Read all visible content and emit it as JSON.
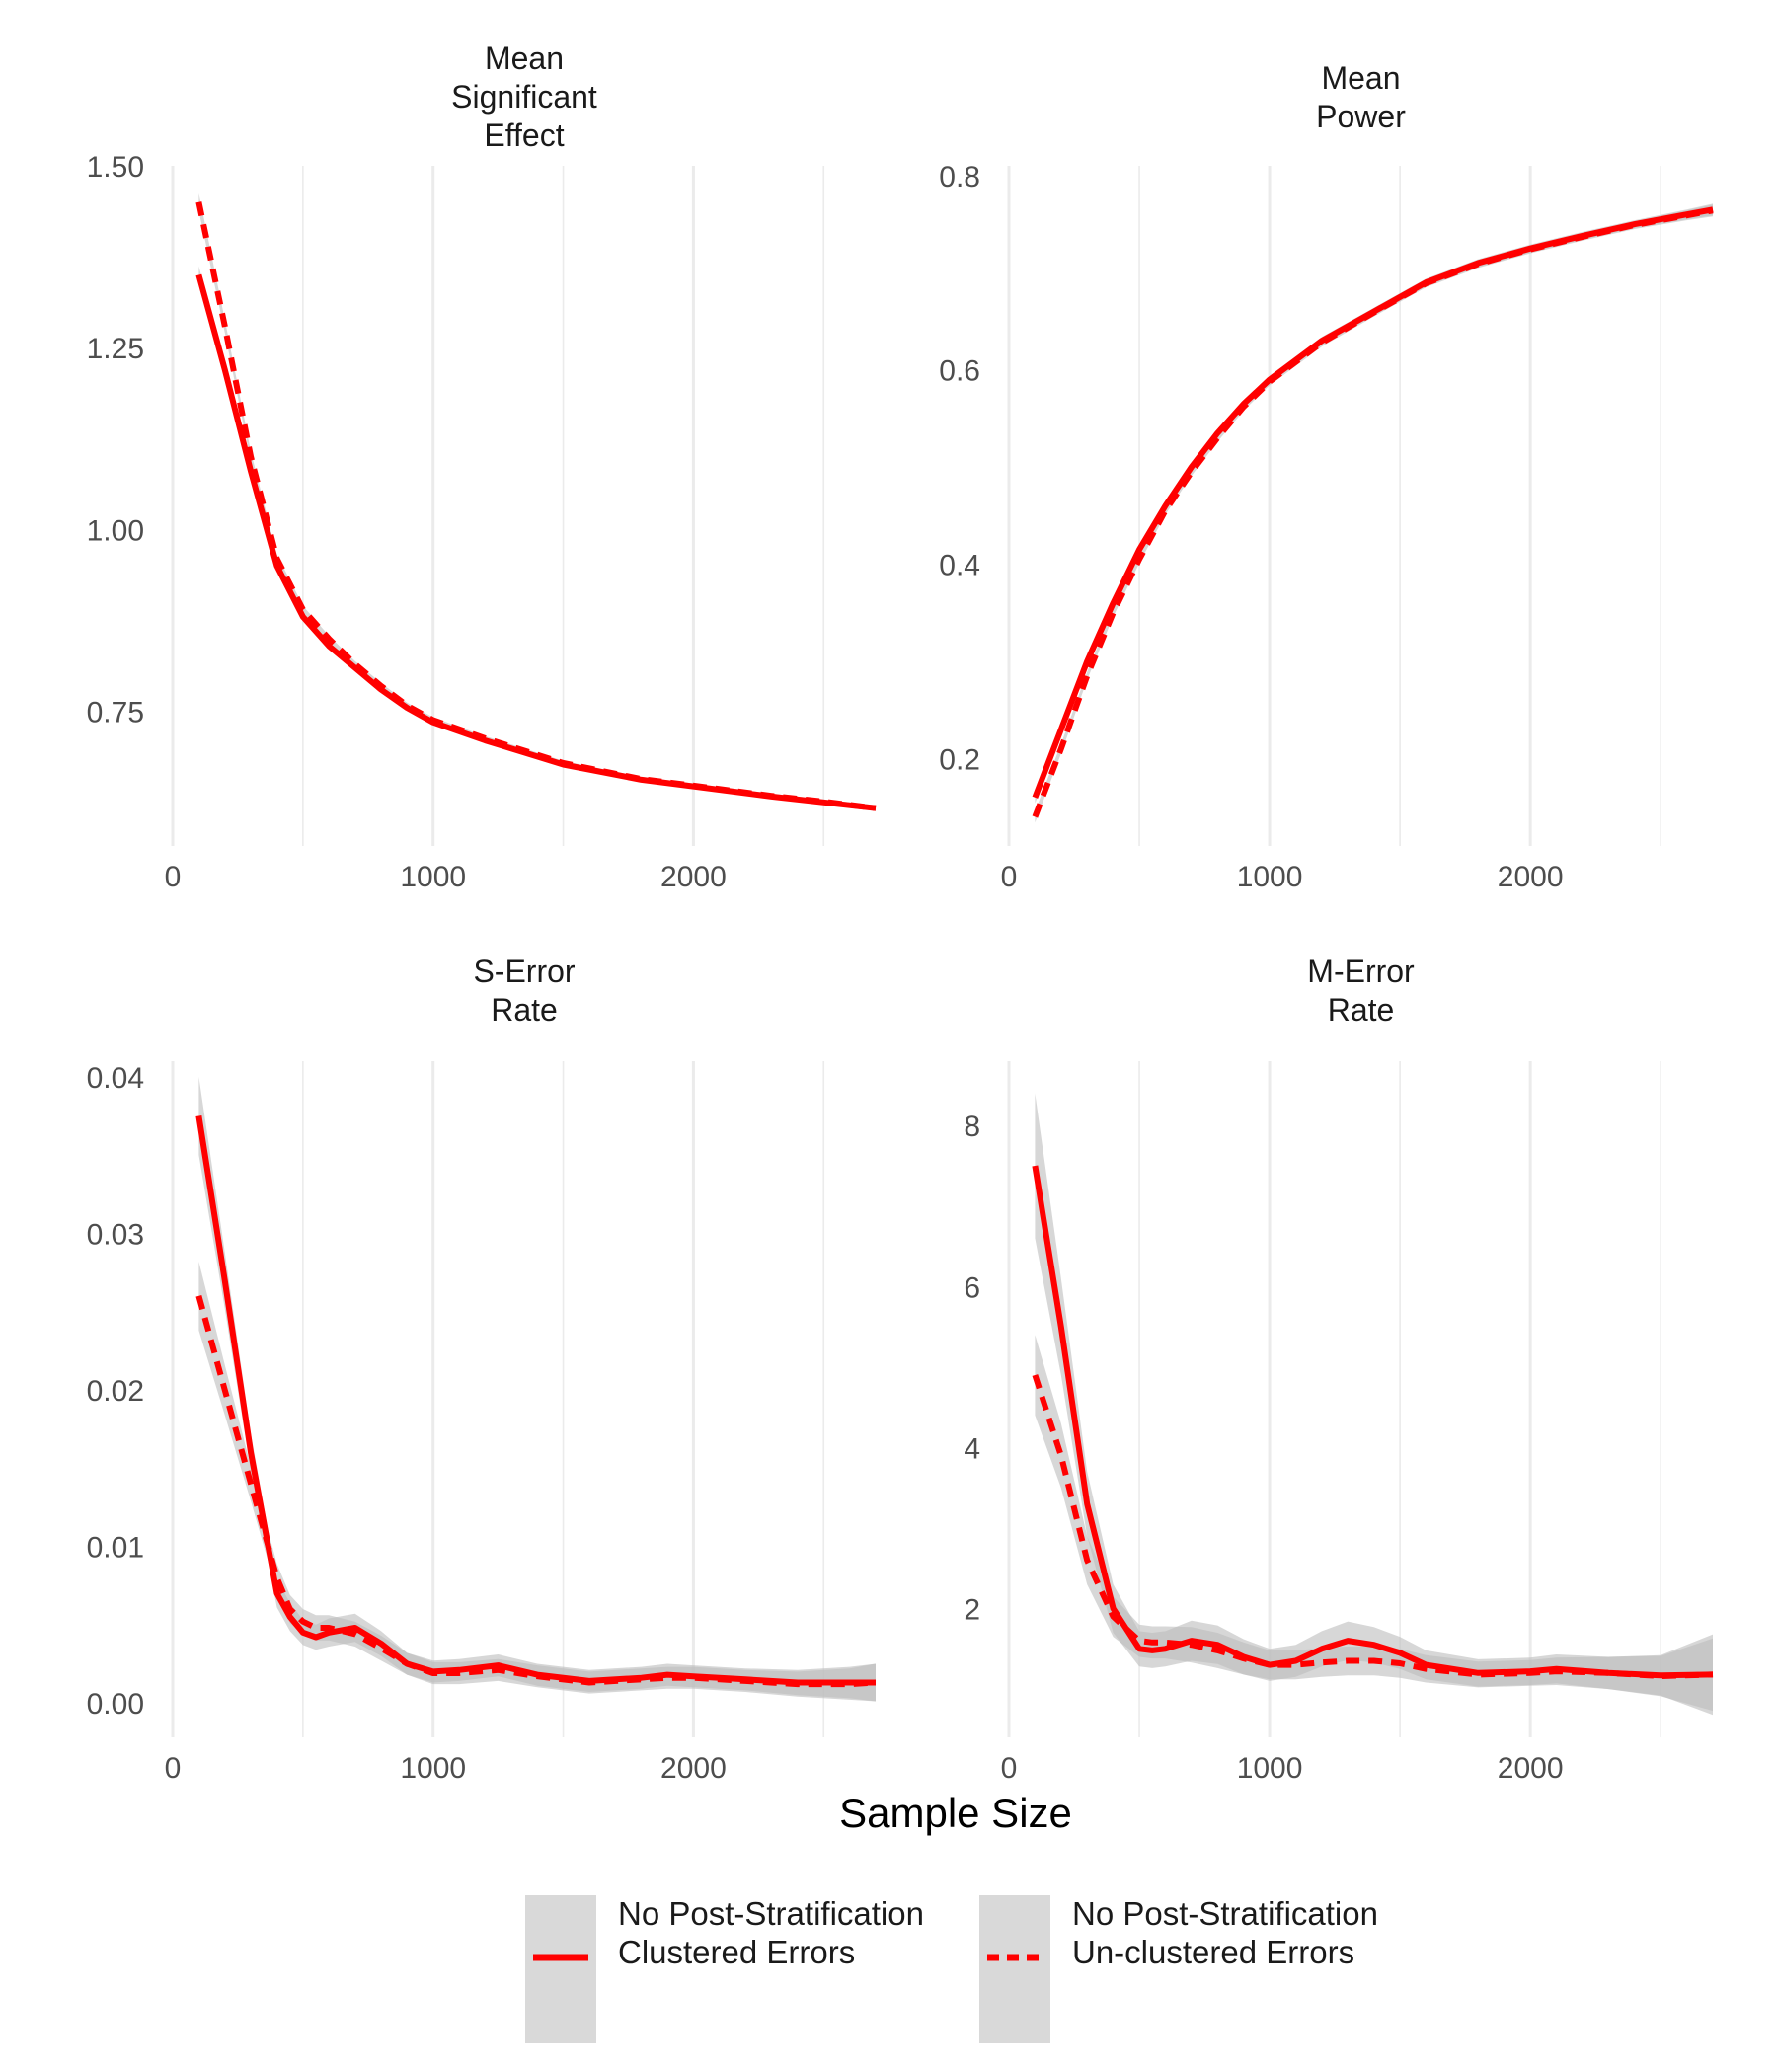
{
  "figure": {
    "x_axis_title": "Sample Size",
    "colors": {
      "line": "#ff0000",
      "ribbon": "#bdbdbd",
      "grid": "#ebebeb",
      "legend_key_bg": "#d9d9d9",
      "tick_text": "#4d4d4d"
    },
    "legend": {
      "placement": "bottom",
      "items": [
        {
          "line1": "No Post-Stratification",
          "line2": "Clustered Errors",
          "linetype": "solid"
        },
        {
          "line1": "No Post-Stratification",
          "line2": "Un-clustered Errors",
          "linetype": "dashed"
        }
      ]
    }
  },
  "chart_data": [
    {
      "type": "line",
      "title_lines": [
        "Mean",
        "Significant",
        "Effect"
      ],
      "xlim": [
        0,
        2700
      ],
      "ylim": [
        0.565,
        1.5
      ],
      "x_ticks": [
        0,
        1000,
        2000
      ],
      "x_minor": [
        500,
        1500,
        2500
      ],
      "y_ticks": [
        0.75,
        1.0,
        1.25,
        1.5
      ],
      "y_tick_labels": [
        "0.75",
        "1.00",
        "1.25",
        "1.50"
      ],
      "grid": "vertical only",
      "series": [
        {
          "linetype": "solid",
          "x": [
            100,
            200,
            300,
            400,
            500,
            600,
            700,
            800,
            900,
            1000,
            1200,
            1500,
            1800,
            2000,
            2300,
            2500,
            2700
          ],
          "y": [
            1.35,
            1.22,
            1.08,
            0.95,
            0.88,
            0.84,
            0.81,
            0.78,
            0.755,
            0.735,
            0.71,
            0.677,
            0.656,
            0.647,
            0.633,
            0.625,
            0.617
          ],
          "ci_halfwidth": [
            0.012,
            0.009,
            0.007,
            0.006,
            0.005,
            0.004,
            0.004,
            0.004,
            0.004,
            0.004,
            0.003,
            0.003,
            0.003,
            0.003,
            0.003,
            0.003,
            0.004
          ]
        },
        {
          "linetype": "dashed",
          "x": [
            100,
            200,
            300,
            400,
            500,
            600,
            700,
            800,
            900,
            1000,
            1200,
            1500,
            1800,
            2000,
            2300,
            2500,
            2700
          ],
          "y": [
            1.45,
            1.28,
            1.1,
            0.96,
            0.89,
            0.85,
            0.815,
            0.785,
            0.758,
            0.738,
            0.713,
            0.679,
            0.657,
            0.648,
            0.634,
            0.626,
            0.617
          ],
          "ci_halfwidth": [
            0.012,
            0.009,
            0.007,
            0.006,
            0.005,
            0.004,
            0.004,
            0.004,
            0.004,
            0.004,
            0.003,
            0.003,
            0.003,
            0.003,
            0.003,
            0.003,
            0.004
          ]
        }
      ]
    },
    {
      "type": "line",
      "title_lines": [
        "Mean",
        "Power"
      ],
      "xlim": [
        0,
        2700
      ],
      "ylim": [
        0.11,
        0.81
      ],
      "x_ticks": [
        0,
        1000,
        2000
      ],
      "x_minor": [
        500,
        1500,
        2500
      ],
      "y_ticks": [
        0.2,
        0.4,
        0.6,
        0.8
      ],
      "y_tick_labels": [
        "0.2",
        "0.4",
        "0.6",
        "0.8"
      ],
      "grid": "vertical only",
      "series": [
        {
          "linetype": "solid",
          "x": [
            100,
            200,
            300,
            400,
            500,
            600,
            700,
            800,
            900,
            1000,
            1200,
            1400,
            1600,
            1800,
            2000,
            2200,
            2400,
            2600,
            2700
          ],
          "y": [
            0.16,
            0.23,
            0.3,
            0.36,
            0.415,
            0.46,
            0.5,
            0.535,
            0.565,
            0.59,
            0.63,
            0.66,
            0.69,
            0.71,
            0.725,
            0.738,
            0.75,
            0.76,
            0.765
          ],
          "ci_halfwidth": [
            0.006,
            0.005,
            0.004,
            0.004,
            0.004,
            0.004,
            0.004,
            0.004,
            0.004,
            0.004,
            0.004,
            0.004,
            0.004,
            0.004,
            0.004,
            0.004,
            0.004,
            0.005,
            0.006
          ]
        },
        {
          "linetype": "dashed",
          "x": [
            100,
            200,
            300,
            400,
            500,
            600,
            700,
            800,
            900,
            1000,
            1200,
            1400,
            1600,
            1800,
            2000,
            2200,
            2400,
            2600,
            2700
          ],
          "y": [
            0.14,
            0.21,
            0.285,
            0.35,
            0.405,
            0.455,
            0.495,
            0.53,
            0.562,
            0.588,
            0.628,
            0.659,
            0.689,
            0.709,
            0.724,
            0.737,
            0.749,
            0.759,
            0.764
          ],
          "ci_halfwidth": [
            0.006,
            0.005,
            0.004,
            0.004,
            0.004,
            0.004,
            0.004,
            0.004,
            0.004,
            0.004,
            0.004,
            0.004,
            0.004,
            0.004,
            0.004,
            0.004,
            0.004,
            0.005,
            0.006
          ]
        }
      ]
    },
    {
      "type": "line",
      "title_lines": [
        "S-Error",
        "Rate"
      ],
      "xlim": [
        0,
        2700
      ],
      "ylim": [
        -0.0022,
        0.041
      ],
      "x_ticks": [
        0,
        1000,
        2000
      ],
      "x_minor": [
        500,
        1500,
        2500
      ],
      "y_ticks": [
        0.0,
        0.01,
        0.02,
        0.03,
        0.04
      ],
      "y_tick_labels": [
        "0.00",
        "0.01",
        "0.02",
        "0.03",
        "0.04"
      ],
      "grid": "vertical only",
      "series": [
        {
          "linetype": "solid",
          "x": [
            100,
            200,
            300,
            400,
            450,
            500,
            550,
            600,
            700,
            800,
            900,
            1000,
            1100,
            1250,
            1400,
            1600,
            1800,
            1900,
            2000,
            2200,
            2400,
            2600,
            2700
          ],
          "y": [
            0.0375,
            0.027,
            0.016,
            0.007,
            0.0055,
            0.0045,
            0.0042,
            0.0045,
            0.0048,
            0.0038,
            0.0025,
            0.002,
            0.0021,
            0.0024,
            0.0018,
            0.0014,
            0.0016,
            0.0018,
            0.0017,
            0.0015,
            0.0013,
            0.0013,
            0.0013
          ],
          "ci_halfwidth": [
            0.0025,
            0.0018,
            0.0012,
            0.0009,
            0.0009,
            0.0008,
            0.0008,
            0.0009,
            0.0009,
            0.0008,
            0.0007,
            0.0007,
            0.0007,
            0.0007,
            0.0007,
            0.0007,
            0.0007,
            0.0007,
            0.0007,
            0.0007,
            0.0008,
            0.001,
            0.0012
          ]
        },
        {
          "linetype": "dashed",
          "x": [
            100,
            200,
            300,
            400,
            450,
            500,
            550,
            600,
            700,
            800,
            900,
            1000,
            1100,
            1250,
            1400,
            1600,
            1800,
            1900,
            2000,
            2200,
            2400,
            2600,
            2700
          ],
          "y": [
            0.026,
            0.02,
            0.014,
            0.008,
            0.006,
            0.0052,
            0.0048,
            0.0048,
            0.0044,
            0.0035,
            0.0025,
            0.0019,
            0.0019,
            0.0021,
            0.0017,
            0.0013,
            0.0015,
            0.0016,
            0.0016,
            0.0014,
            0.0012,
            0.0012,
            0.0013
          ],
          "ci_halfwidth": [
            0.0022,
            0.0016,
            0.0011,
            0.0009,
            0.0009,
            0.0008,
            0.0008,
            0.0008,
            0.0008,
            0.0008,
            0.0007,
            0.0007,
            0.0007,
            0.0007,
            0.0007,
            0.0007,
            0.0007,
            0.0007,
            0.0007,
            0.0007,
            0.0008,
            0.001,
            0.0012
          ]
        }
      ]
    },
    {
      "type": "line",
      "title_lines": [
        "M-Error",
        "Rate"
      ],
      "xlim": [
        0,
        2700
      ],
      "ylim": [
        0.4,
        8.8
      ],
      "x_ticks": [
        0,
        1000,
        2000
      ],
      "x_minor": [
        500,
        1500,
        2500
      ],
      "y_ticks": [
        2,
        4,
        6,
        8
      ],
      "y_tick_labels": [
        "2",
        "4",
        "6",
        "8"
      ],
      "grid": "vertical only",
      "series": [
        {
          "linetype": "solid",
          "x": [
            100,
            200,
            300,
            400,
            500,
            550,
            600,
            700,
            800,
            900,
            1000,
            1100,
            1200,
            1300,
            1400,
            1500,
            1600,
            1800,
            2000,
            2100,
            2300,
            2500,
            2700
          ],
          "y": [
            7.5,
            5.5,
            3.3,
            2.0,
            1.5,
            1.48,
            1.5,
            1.6,
            1.55,
            1.4,
            1.3,
            1.35,
            1.5,
            1.6,
            1.55,
            1.45,
            1.3,
            1.2,
            1.22,
            1.25,
            1.2,
            1.17,
            1.18
          ],
          "ci_halfwidth": [
            0.9,
            0.6,
            0.4,
            0.3,
            0.22,
            0.22,
            0.22,
            0.25,
            0.24,
            0.22,
            0.2,
            0.2,
            0.22,
            0.24,
            0.22,
            0.2,
            0.18,
            0.17,
            0.17,
            0.18,
            0.2,
            0.25,
            0.5
          ]
        },
        {
          "linetype": "dashed",
          "x": [
            100,
            200,
            300,
            400,
            500,
            550,
            600,
            700,
            800,
            900,
            1000,
            1100,
            1200,
            1300,
            1400,
            1500,
            1600,
            1800,
            2000,
            2100,
            2300,
            2500,
            2700
          ],
          "y": [
            4.9,
            3.9,
            2.6,
            1.9,
            1.6,
            1.58,
            1.58,
            1.55,
            1.48,
            1.38,
            1.3,
            1.3,
            1.33,
            1.35,
            1.35,
            1.32,
            1.25,
            1.18,
            1.2,
            1.22,
            1.2,
            1.16,
            1.18
          ],
          "ci_halfwidth": [
            0.5,
            0.4,
            0.3,
            0.25,
            0.2,
            0.2,
            0.2,
            0.22,
            0.22,
            0.2,
            0.18,
            0.18,
            0.18,
            0.18,
            0.18,
            0.18,
            0.17,
            0.16,
            0.16,
            0.17,
            0.2,
            0.25,
            0.45
          ]
        }
      ]
    }
  ]
}
